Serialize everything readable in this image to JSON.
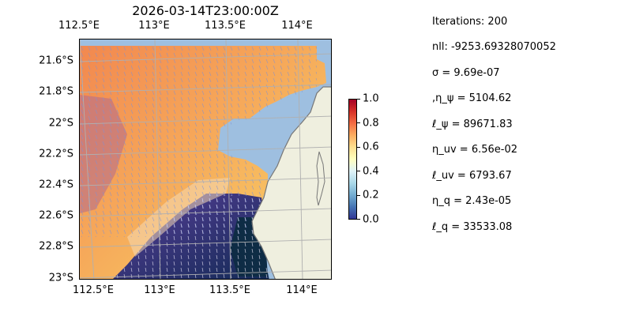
{
  "plot": {
    "title": "2026-03-14T23:00:00Z",
    "lon_ticks": [
      "112.5°E",
      "113°E",
      "113.5°E",
      "114°E"
    ],
    "lat_ticks": [
      "21.6°S",
      "21.8°S",
      "22°S",
      "22.2°S",
      "22.4°S",
      "22.6°S",
      "22.8°S",
      "23°S"
    ],
    "colorbar_ticks": [
      "1.0",
      "0.8",
      "0.6",
      "0.4",
      "0.2",
      "0.0"
    ],
    "colors": {
      "ocean": "#9ebfe0",
      "land": "#efefdf",
      "coast": "#777777",
      "grid": "#b0b0b0"
    }
  },
  "params": {
    "iterations": "Iterations: 200",
    "nll": "nll: -9253.69328070052",
    "sigma": "σ = 9.69e-07",
    "eta_psi": ",η_ψ = 5104.62",
    "ell_psi": "ℓ_ψ = 89671.83",
    "eta_uv": "η_uv = 6.56e-02",
    "ell_uv": "ℓ_uv = 6793.67",
    "eta_q": "η_q = 2.43e-05",
    "ell_q": "ℓ_q = 33533.08"
  }
}
